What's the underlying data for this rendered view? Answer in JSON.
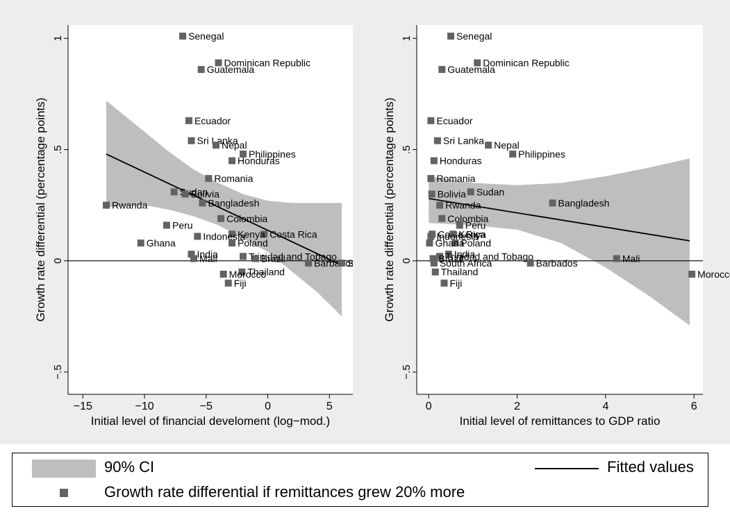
{
  "colors": {
    "background": "#ededed",
    "plot_region": "#ffffff",
    "ci_band": "#bebebe",
    "marker": "#636363",
    "fit_line": "#000000"
  },
  "legend": {
    "ci_label": "90% CI",
    "fit_label": "Fitted values",
    "marker_label": "Growth rate differential if remittances grew 20% more"
  },
  "chart_data": [
    {
      "type": "scatter",
      "xlabel": "Initial level of financial develoment (log−mod.)",
      "ylabel": "Growth rate differential (percentage points)",
      "xlim": [
        -16.2,
        6.9
      ],
      "ylim": [
        -0.6,
        1.06
      ],
      "xticks": [
        -15,
        -10,
        -5,
        0,
        5
      ],
      "xtick_labels": [
        "−15",
        "−10",
        "−5",
        "0",
        "5"
      ],
      "yticks": [
        -0.5,
        0,
        0.5,
        1
      ],
      "ytick_labels": [
        "−.5",
        "0",
        ".5",
        "1"
      ],
      "hline": 0,
      "fit": {
        "x": [
          -13.1,
          6.0
        ],
        "y": [
          0.48,
          -0.02
        ]
      },
      "ci_band": {
        "x": [
          -13.1,
          -10,
          -8,
          -6,
          -4,
          -2,
          0,
          2,
          4,
          6.0
        ],
        "upper": [
          0.72,
          0.58,
          0.49,
          0.41,
          0.35,
          0.3,
          0.27,
          0.26,
          0.26,
          0.26
        ],
        "lower": [
          0.24,
          0.25,
          0.23,
          0.2,
          0.16,
          0.1,
          0.04,
          -0.05,
          -0.14,
          -0.25
        ]
      },
      "points": [
        {
          "label": "Senegal",
          "x": -6.9,
          "y": 1.01
        },
        {
          "label": "Dominican Republic",
          "x": -4.0,
          "y": 0.89
        },
        {
          "label": "Guatemala",
          "x": -5.4,
          "y": 0.86
        },
        {
          "label": "Ecuador",
          "x": -6.4,
          "y": 0.63
        },
        {
          "label": "Sri Lanka",
          "x": -6.2,
          "y": 0.54
        },
        {
          "label": "Nepal",
          "x": -4.2,
          "y": 0.52
        },
        {
          "label": "Philippines",
          "x": -2.0,
          "y": 0.48
        },
        {
          "label": "Honduras",
          "x": -2.9,
          "y": 0.45
        },
        {
          "label": "Romania",
          "x": -4.8,
          "y": 0.37
        },
        {
          "label": "Sudan",
          "x": -7.6,
          "y": 0.31
        },
        {
          "label": "Bolivia",
          "x": -6.7,
          "y": 0.3
        },
        {
          "label": "Bangladesh",
          "x": -5.3,
          "y": 0.26
        },
        {
          "label": "Rwanda",
          "x": -13.1,
          "y": 0.25
        },
        {
          "label": "Colombia",
          "x": -3.8,
          "y": 0.19
        },
        {
          "label": "Peru",
          "x": -8.2,
          "y": 0.16
        },
        {
          "label": "Costa Rica",
          "x": -0.3,
          "y": 0.12
        },
        {
          "label": "Kenya",
          "x": -2.9,
          "y": 0.12
        },
        {
          "label": "Indonesia",
          "x": -5.7,
          "y": 0.11
        },
        {
          "label": "Poland",
          "x": -2.9,
          "y": 0.08
        },
        {
          "label": "Ghana",
          "x": -10.3,
          "y": 0.08
        },
        {
          "label": "India",
          "x": -6.2,
          "y": 0.03
        },
        {
          "label": "Trinidad and Tobago",
          "x": -2.0,
          "y": 0.02
        },
        {
          "label": "Mali",
          "x": -6.0,
          "y": 0.01
        },
        {
          "label": "Brazil",
          "x": -1.0,
          "y": 0.01
        },
        {
          "label": "Barbados",
          "x": 3.3,
          "y": -0.01
        },
        {
          "label": "South Africa",
          "x": 6.0,
          "y": -0.01
        },
        {
          "label": "Thailand",
          "x": -2.1,
          "y": -0.05
        },
        {
          "label": "Morocco",
          "x": -3.6,
          "y": -0.06
        },
        {
          "label": "Fiji",
          "x": -3.2,
          "y": -0.1
        }
      ]
    },
    {
      "type": "scatter",
      "xlabel": "Initial level of remittances to GDP ratio",
      "ylabel": "Growth rate differential (percentage points)",
      "xlim": [
        -0.27,
        6.2
      ],
      "ylim": [
        -0.6,
        1.06
      ],
      "xticks": [
        0,
        2,
        4,
        6
      ],
      "xtick_labels": [
        "0",
        "2",
        "4",
        "6"
      ],
      "yticks": [
        -0.5,
        0,
        0.5,
        1
      ],
      "ytick_labels": [
        "−.5",
        "0",
        ".5",
        "1"
      ],
      "hline": 0,
      "fit": {
        "x": [
          0.0,
          5.9
        ],
        "y": [
          0.28,
          0.09
        ]
      },
      "ci_band": {
        "x": [
          0.0,
          1,
          2,
          3,
          4,
          5,
          5.9
        ],
        "upper": [
          0.38,
          0.35,
          0.34,
          0.35,
          0.38,
          0.42,
          0.46
        ],
        "lower": [
          0.17,
          0.16,
          0.14,
          0.08,
          -0.03,
          -0.16,
          -0.29
        ]
      },
      "points": [
        {
          "label": "Senegal",
          "x": 0.5,
          "y": 1.01
        },
        {
          "label": "Dominican Republic",
          "x": 1.1,
          "y": 0.89
        },
        {
          "label": "Guatemala",
          "x": 0.3,
          "y": 0.86
        },
        {
          "label": "Ecuador",
          "x": 0.05,
          "y": 0.63
        },
        {
          "label": "Sri Lanka",
          "x": 0.2,
          "y": 0.54
        },
        {
          "label": "Nepal",
          "x": 1.35,
          "y": 0.52
        },
        {
          "label": "Philippines",
          "x": 1.9,
          "y": 0.48
        },
        {
          "label": "Honduras",
          "x": 0.12,
          "y": 0.45
        },
        {
          "label": "Romania",
          "x": 0.05,
          "y": 0.37
        },
        {
          "label": "Sudan",
          "x": 0.95,
          "y": 0.31
        },
        {
          "label": "Bolivia",
          "x": 0.07,
          "y": 0.3
        },
        {
          "label": "Bangladesh",
          "x": 2.8,
          "y": 0.26
        },
        {
          "label": "Rwanda",
          "x": 0.25,
          "y": 0.25
        },
        {
          "label": "Colombia",
          "x": 0.3,
          "y": 0.19
        },
        {
          "label": "Peru",
          "x": 0.7,
          "y": 0.16
        },
        {
          "label": "Costa Rica",
          "x": 0.08,
          "y": 0.12
        },
        {
          "label": "Kenya",
          "x": 0.55,
          "y": 0.12
        },
        {
          "label": "Indonesia",
          "x": 0.05,
          "y": 0.11
        },
        {
          "label": "Poland",
          "x": 0.6,
          "y": 0.08
        },
        {
          "label": "Ghana",
          "x": 0.02,
          "y": 0.08
        },
        {
          "label": "India",
          "x": 0.45,
          "y": 0.03
        },
        {
          "label": "Trinidad and Tobago",
          "x": 0.25,
          "y": 0.02
        },
        {
          "label": "Mali",
          "x": 4.25,
          "y": 0.01
        },
        {
          "label": "Brazil",
          "x": 0.1,
          "y": 0.01
        },
        {
          "label": "Barbados",
          "x": 2.3,
          "y": -0.01
        },
        {
          "label": "South Africa",
          "x": 0.12,
          "y": -0.01
        },
        {
          "label": "Thailand",
          "x": 0.15,
          "y": -0.05
        },
        {
          "label": "Morocco",
          "x": 5.95,
          "y": -0.06
        },
        {
          "label": "Fiji",
          "x": 0.35,
          "y": -0.1
        }
      ]
    }
  ]
}
